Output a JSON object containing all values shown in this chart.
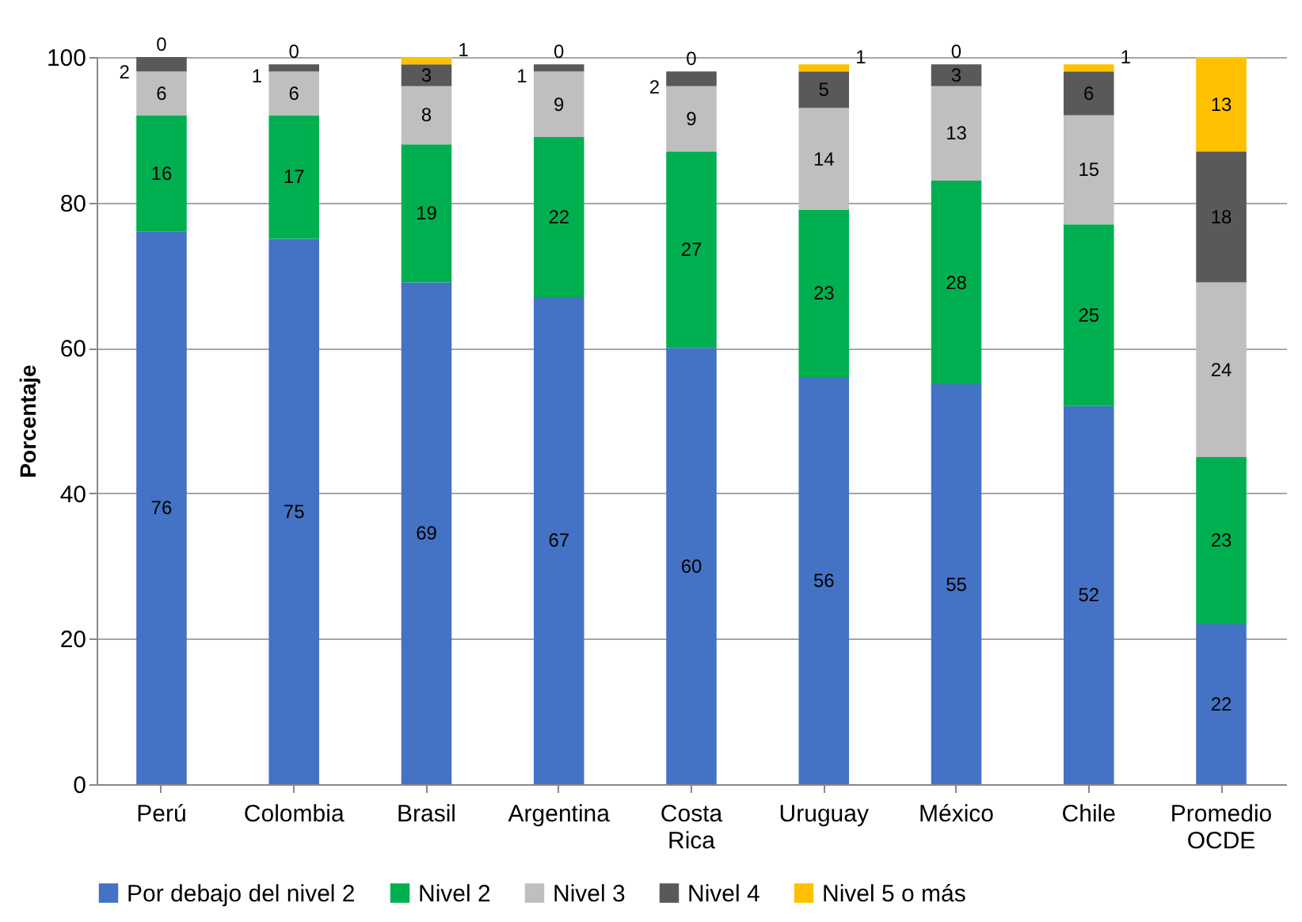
{
  "chart_data": {
    "type": "bar",
    "stacked": true,
    "ylabel": "Porcentaje",
    "categories": [
      "Perú",
      "Colombia",
      "Brasil",
      "Argentina",
      "Costa Rica",
      "Uruguay",
      "México",
      "Chile",
      "Promedio OCDE"
    ],
    "series": [
      {
        "name": "Por debajo del nivel 2",
        "color": "#4472c4",
        "values": [
          76,
          75,
          69,
          67,
          60,
          56,
          55,
          52,
          22
        ]
      },
      {
        "name": "Nivel 2",
        "color": "#00b050",
        "values": [
          16,
          17,
          19,
          22,
          27,
          23,
          28,
          25,
          23
        ]
      },
      {
        "name": "Nivel 3",
        "color": "#bfbfbf",
        "values": [
          6,
          6,
          8,
          9,
          9,
          14,
          13,
          15,
          24
        ]
      },
      {
        "name": "Nivel 4",
        "color": "#595959",
        "values": [
          2,
          1,
          3,
          1,
          2,
          5,
          3,
          6,
          18
        ]
      },
      {
        "name": "Nivel 5 o más",
        "color": "#ffc000",
        "values": [
          0,
          0,
          1,
          0,
          0,
          1,
          0,
          1,
          13
        ]
      }
    ],
    "ylim": [
      0,
      100
    ],
    "yticks": [
      0,
      20,
      40,
      60,
      80,
      100
    ],
    "grid": "y",
    "legend": "bottom",
    "data_labels": true
  }
}
